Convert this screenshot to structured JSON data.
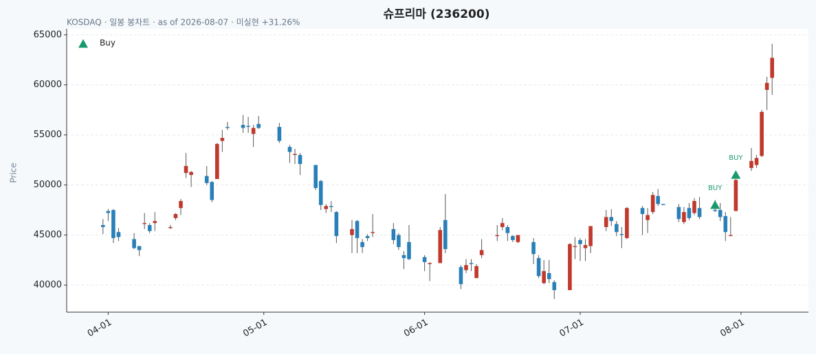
{
  "chart_data": {
    "type": "candlestick",
    "title": "슈프리마 (236200)",
    "subtitle": "KOSDAQ · 일봉 봉차트 · as of 2026-08-07 · 미실현 +31.26%",
    "ylabel": "Price",
    "up_color": "#c0392b",
    "down_color": "#2980b9",
    "wick_color": "#555555",
    "grid": true,
    "legend": "upper left",
    "xlim": [
      "2026-03-24",
      "2026-08-14"
    ],
    "xticks": [
      {
        "value": "2026-04-01",
        "label": "04-01"
      },
      {
        "value": "2026-05-01",
        "label": "05-01"
      },
      {
        "value": "2026-06-01",
        "label": "06-01"
      },
      {
        "value": "2026-07-01",
        "label": "07-01"
      },
      {
        "value": "2026-08-01",
        "label": "08-01"
      }
    ],
    "ylim": [
      37300,
      65600
    ],
    "yticks": [
      40000,
      45000,
      50000,
      55000,
      60000,
      65000
    ],
    "x": [
      "2026-03-31",
      "2026-04-01",
      "2026-04-02",
      "2026-04-03",
      "2026-04-06",
      "2026-04-07",
      "2026-04-08",
      "2026-04-09",
      "2026-04-10",
      "2026-04-13",
      "2026-04-14",
      "2026-04-15",
      "2026-04-16",
      "2026-04-17",
      "2026-04-20",
      "2026-04-21",
      "2026-04-22",
      "2026-04-23",
      "2026-04-24",
      "2026-04-27",
      "2026-04-28",
      "2026-04-29",
      "2026-04-30",
      "2026-05-04",
      "2026-05-06",
      "2026-05-07",
      "2026-05-08",
      "2026-05-11",
      "2026-05-12",
      "2026-05-13",
      "2026-05-14",
      "2026-05-15",
      "2026-05-18",
      "2026-05-19",
      "2026-05-20",
      "2026-05-21",
      "2026-05-22",
      "2026-05-26",
      "2026-05-27",
      "2026-05-28",
      "2026-05-29",
      "2026-06-01",
      "2026-06-02",
      "2026-06-04",
      "2026-06-05",
      "2026-06-08",
      "2026-06-09",
      "2026-06-10",
      "2026-06-11",
      "2026-06-12",
      "2026-06-15",
      "2026-06-16",
      "2026-06-17",
      "2026-06-18",
      "2026-06-19",
      "2026-06-22",
      "2026-06-23",
      "2026-06-24",
      "2026-06-25",
      "2026-06-26",
      "2026-06-29",
      "2026-06-30",
      "2026-07-01",
      "2026-07-02",
      "2026-07-03",
      "2026-07-06",
      "2026-07-07",
      "2026-07-08",
      "2026-07-09",
      "2026-07-10",
      "2026-07-13",
      "2026-07-14",
      "2026-07-15",
      "2026-07-16",
      "2026-07-17",
      "2026-07-20",
      "2026-07-21",
      "2026-07-22",
      "2026-07-23",
      "2026-07-24",
      "2026-07-27",
      "2026-07-28",
      "2026-07-29",
      "2026-07-30",
      "2026-07-31",
      "2026-08-03",
      "2026-08-04",
      "2026-08-05",
      "2026-08-06",
      "2026-08-07"
    ],
    "open": [
      46000,
      47400,
      47500,
      45300,
      44600,
      43900,
      46100,
      46000,
      46200,
      45700,
      46700,
      47700,
      51200,
      51000,
      50900,
      50300,
      50600,
      54400,
      55800,
      56000,
      55900,
      55100,
      56100,
      55800,
      53800,
      53000,
      53000,
      52000,
      50400,
      47600,
      47900,
      47300,
      45000,
      46400,
      44300,
      44900,
      45200,
      45600,
      45000,
      43000,
      44300,
      42800,
      42100,
      42200,
      46500,
      41800,
      41500,
      42200,
      40700,
      43000,
      44900,
      45800,
      45800,
      44900,
      44300,
      44300,
      42700,
      40200,
      41200,
      40300,
      39500,
      43800,
      44500,
      43700,
      43900,
      45800,
      46800,
      46100,
      45100,
      44700,
      47700,
      46500,
      47300,
      48900,
      48100,
      47800,
      46300,
      47700,
      47200,
      47700,
      47500,
      47500,
      46900,
      44900,
      47400,
      51700,
      52000,
      52900,
      59500,
      60700
    ],
    "high": [
      46600,
      47600,
      47600,
      45700,
      45200,
      43900,
      47200,
      46200,
      47300,
      46000,
      47200,
      48600,
      53200,
      51400,
      51900,
      50400,
      54200,
      55500,
      56300,
      57000,
      56800,
      56000,
      56900,
      56200,
      54000,
      53600,
      53200,
      52000,
      50500,
      48100,
      48400,
      47400,
      46500,
      46500,
      44600,
      45100,
      47100,
      46200,
      45200,
      43400,
      46000,
      43000,
      42300,
      45800,
      49100,
      42000,
      42600,
      42600,
      42100,
      44600,
      46000,
      46700,
      46000,
      45000,
      45000,
      44700,
      43000,
      42500,
      42500,
      40500,
      44200,
      44800,
      44700,
      44600,
      45900,
      47500,
      47600,
      46400,
      45800,
      47800,
      47900,
      47700,
      49300,
      49600,
      48100,
      48100,
      47800,
      48200,
      48700,
      48800,
      48500,
      48200,
      47300,
      46800,
      50600,
      53700,
      53000,
      57500,
      60800,
      64100
    ],
    "low": [
      45100,
      46400,
      44200,
      44400,
      43600,
      42900,
      45600,
      45200,
      45400,
      45600,
      46500,
      47000,
      50700,
      49800,
      50000,
      48300,
      50600,
      53300,
      55500,
      55200,
      55200,
      53800,
      55600,
      54200,
      52200,
      52100,
      51000,
      49500,
      47500,
      47200,
      47300,
      44200,
      43200,
      43200,
      43200,
      44400,
      44800,
      44100,
      43500,
      41600,
      42500,
      41400,
      40400,
      42200,
      43200,
      39600,
      41200,
      41400,
      40700,
      42700,
      44400,
      45500,
      44400,
      44300,
      44200,
      42100,
      40700,
      40100,
      40200,
      38600,
      39500,
      42600,
      42400,
      42400,
      43200,
      45400,
      45900,
      44900,
      43700,
      44600,
      45000,
      45200,
      47100,
      47900,
      48000,
      46300,
      46100,
      46500,
      47000,
      46600,
      47300,
      46400,
      44400,
      44900,
      47400,
      51400,
      51700,
      52800,
      57500,
      59000
    ],
    "close": [
      45800,
      47200,
      44700,
      44800,
      43700,
      43500,
      46200,
      45400,
      46400,
      45800,
      47100,
      48400,
      51900,
      51300,
      50200,
      48500,
      54100,
      54700,
      55700,
      55700,
      55800,
      55700,
      55700,
      54400,
      53300,
      53100,
      52100,
      49700,
      48000,
      47900,
      47800,
      44900,
      45600,
      44700,
      43800,
      44700,
      45300,
      44500,
      43800,
      42700,
      42600,
      42300,
      42200,
      45500,
      43600,
      40100,
      42000,
      42100,
      41900,
      43500,
      45000,
      46200,
      45200,
      44500,
      45000,
      43100,
      40900,
      41400,
      40600,
      39500,
      44100,
      43900,
      44100,
      44000,
      45900,
      46800,
      46400,
      45300,
      45000,
      47700,
      47100,
      47000,
      49000,
      48100,
      48000,
      46600,
      47300,
      46700,
      48400,
      46800,
      47400,
      46800,
      45300,
      45000,
      50500,
      52400,
      52700,
      57300,
      60200,
      62700
    ],
    "signals": {
      "name": "Buy",
      "color": "#1a9a6c",
      "points": [
        {
          "x": "2026-07-27",
          "y": 48000,
          "label": "BUY"
        },
        {
          "x": "2026-07-31",
          "y": 51000,
          "label": "BUY"
        }
      ]
    }
  }
}
